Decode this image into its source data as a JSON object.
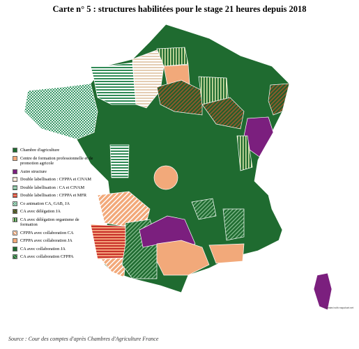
{
  "title": "Carte n° 5 : structures habilitées pour le stage 21 heures depuis 2018",
  "legend": [
    {
      "label": "Chambre d'agriculture"
    },
    {
      "label": "Centre de formation professionnelle et de promotion agricole"
    },
    {
      "label": "Autre structure"
    },
    {
      "label": "Double labellisation : CFPPA et CIVAM"
    },
    {
      "label": "Double labellisation : CA et CIVAM"
    },
    {
      "label": "Double labellisation : CFPPA et MFR"
    },
    {
      "label": "Co animation CA, GAB, JA"
    },
    {
      "label": "CA avec délégation JA"
    },
    {
      "label": "CA avec délégation organisme de formation"
    },
    {
      "label": "CFPPA avec collaboration CA"
    },
    {
      "label": "CFPPA avec collaboration JA"
    },
    {
      "label": "CA avec collaboration JA"
    },
    {
      "label": "CA avec collaboration CFPPA"
    }
  ],
  "source": "Source : Cour des comptes d'après Chambres d'Agriculture France",
  "credit": "Created with mapchart.net"
}
